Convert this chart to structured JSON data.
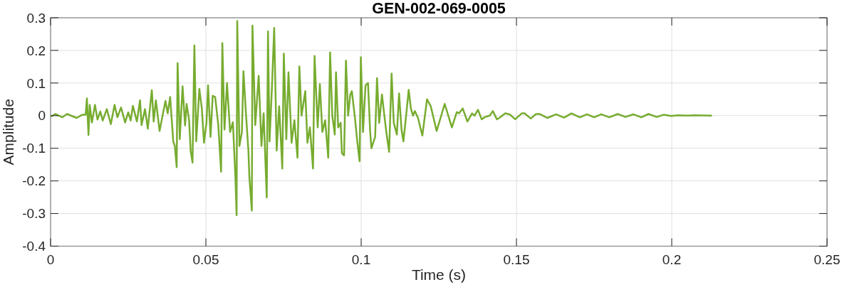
{
  "chart_data": {
    "type": "line",
    "title": "GEN-002-069-0005",
    "xlabel": "Time (s)",
    "ylabel": "Amplitude",
    "xlim": [
      0,
      0.25
    ],
    "ylim": [
      -0.4,
      0.3
    ],
    "xticks": [
      0,
      0.05,
      0.1,
      0.15,
      0.2,
      0.25
    ],
    "yticks": [
      -0.4,
      -0.3,
      -0.2,
      -0.1,
      0,
      0.1,
      0.2,
      0.3
    ],
    "grid": true,
    "series": [
      {
        "color": "#77ac30",
        "x": [
          0.0003,
          0.0015,
          0.0038,
          0.0053,
          0.0084,
          0.0103,
          0.0113,
          0.0117,
          0.0122,
          0.0126,
          0.0133,
          0.0143,
          0.0151,
          0.016,
          0.0168,
          0.0181,
          0.0194,
          0.0206,
          0.0215,
          0.0227,
          0.024,
          0.025,
          0.0258,
          0.0265,
          0.0278,
          0.0288,
          0.0293,
          0.0304,
          0.0313,
          0.0326,
          0.0332,
          0.0339,
          0.0351,
          0.0362,
          0.037,
          0.0377,
          0.0385,
          0.0395,
          0.04,
          0.0406,
          0.0409,
          0.0416,
          0.0425,
          0.0433,
          0.0438,
          0.0446,
          0.0451,
          0.0457,
          0.0463,
          0.0469,
          0.0479,
          0.0487,
          0.0494,
          0.0502,
          0.0507,
          0.0515,
          0.0522,
          0.053,
          0.054,
          0.0549,
          0.0553,
          0.056,
          0.0568,
          0.0578,
          0.0587,
          0.0595,
          0.0599,
          0.0601,
          0.0608,
          0.0616,
          0.0621,
          0.0629,
          0.0637,
          0.064,
          0.0648,
          0.065,
          0.0659,
          0.067,
          0.0679,
          0.0686,
          0.0696,
          0.07,
          0.0705,
          0.0713,
          0.072,
          0.0728,
          0.0736,
          0.0746,
          0.0751,
          0.0759,
          0.0766,
          0.0776,
          0.0785,
          0.0795,
          0.0801,
          0.0808,
          0.082,
          0.0827,
          0.0835,
          0.0845,
          0.085,
          0.086,
          0.0867,
          0.0875,
          0.0884,
          0.0894,
          0.09,
          0.0907,
          0.0915,
          0.0919,
          0.0926,
          0.0934,
          0.0938,
          0.0945,
          0.0951,
          0.0958,
          0.0965,
          0.097,
          0.098,
          0.0987,
          0.0995,
          0.0999,
          0.1006,
          0.1014,
          0.1022,
          0.1029,
          0.1033,
          0.1045,
          0.1051,
          0.1058,
          0.1067,
          0.1073,
          0.1081,
          0.109,
          0.1098,
          0.1105,
          0.1115,
          0.1122,
          0.113,
          0.1136,
          0.1144,
          0.1153,
          0.116,
          0.1167,
          0.1173,
          0.1183,
          0.1197,
          0.1212,
          0.1224,
          0.1243,
          0.1269,
          0.1292,
          0.1308,
          0.1315,
          0.1327,
          0.1342,
          0.1357,
          0.1365,
          0.1376,
          0.1388,
          0.1399,
          0.1414,
          0.1424,
          0.1437,
          0.1445,
          0.1464,
          0.1478,
          0.1496,
          0.1517,
          0.1526,
          0.1546,
          0.1563,
          0.1574,
          0.16,
          0.1628,
          0.1653,
          0.1677,
          0.1704,
          0.1727,
          0.175,
          0.1773,
          0.1799,
          0.1826,
          0.1851,
          0.1876,
          0.1902,
          0.1925,
          0.1952,
          0.1975,
          0.1998,
          0.202,
          0.2051,
          0.2074,
          0.2127
        ],
        "values": [
          -0.002,
          0.005,
          -0.005,
          0.005,
          -0.007,
          0.003,
          0.003,
          0.053,
          -0.059,
          0.033,
          -0.021,
          0.033,
          -0.012,
          0.013,
          -0.015,
          0.02,
          -0.026,
          0.033,
          -0.005,
          0.025,
          -0.021,
          0.01,
          -0.015,
          0.03,
          -0.018,
          0.047,
          -0.029,
          0.02,
          -0.04,
          0.078,
          -0.018,
          0.047,
          -0.047,
          0.007,
          0.045,
          0.007,
          0.057,
          -0.079,
          -0.093,
          -0.158,
          0.161,
          -0.072,
          0.09,
          -0.03,
          0.036,
          -0.014,
          -0.108,
          -0.144,
          0.215,
          -0.079,
          0.082,
          0.022,
          -0.083,
          -0.022,
          0.093,
          -0.065,
          0.061,
          0.057,
          -0.029,
          -0.172,
          0.222,
          -0.043,
          0.1,
          -0.05,
          -0.02,
          -0.187,
          -0.305,
          0.29,
          -0.093,
          -0.05,
          0.136,
          0.007,
          -0.108,
          -0.187,
          -0.291,
          0.276,
          -0.029,
          0.122,
          -0.093,
          0.007,
          -0.251,
          0.258,
          -0.079,
          0.093,
          0.269,
          -0.107,
          0.029,
          -0.162,
          0.19,
          -0.072,
          0.133,
          -0.083,
          -0.014,
          -0.129,
          0.151,
          0,
          0.075,
          -0.083,
          -0.036,
          -0.162,
          0.183,
          -0.036,
          0.097,
          -0.05,
          -0.014,
          -0.129,
          0.194,
          0,
          -0.058,
          0.133,
          -0.036,
          -0.022,
          -0.115,
          -0.122,
          0.169,
          0,
          0.065,
          0.075,
          -0.007,
          -0.075,
          -0.14,
          0.179,
          -0.05,
          0.093,
          0.1,
          -0.05,
          -0.1,
          -0.065,
          0.115,
          -0.022,
          0.065,
          0.014,
          -0.05,
          -0.111,
          0.129,
          -0.022,
          -0.058,
          0.068,
          -0.043,
          -0.079,
          -0.007,
          0.079,
          0.022,
          0,
          0.014,
          -0.007,
          -0.061,
          0.05,
          0.029,
          -0.047,
          0.036,
          -0.036,
          0.011,
          0.007,
          0.022,
          -0.018,
          0.007,
          0,
          0.018,
          -0.011,
          -0.004,
          0,
          0.014,
          -0.011,
          -0.007,
          0.007,
          0.004,
          -0.011,
          0.007,
          0.007,
          -0.009,
          0.005,
          0.005,
          -0.007,
          0.004,
          -0.006,
          0.007,
          -0.005,
          0.004,
          -0.005,
          0.004,
          -0.005,
          0.005,
          -0.004,
          0.004,
          -0.005,
          0.005,
          -0.004,
          0.003,
          -0.001,
          0.001,
          0,
          0.001,
          0
        ]
      }
    ]
  }
}
